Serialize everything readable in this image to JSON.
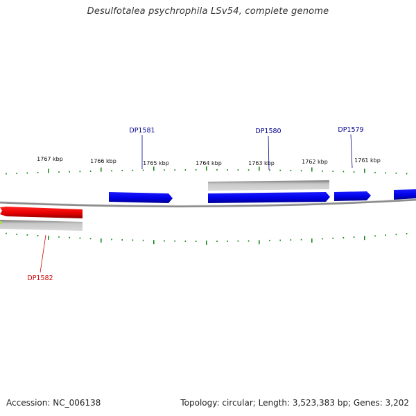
{
  "title": "Desulfotalea psychrophila LSv54, complete genome",
  "footer": {
    "accession": "Accession: NC_006138",
    "summary": "Topology: circular; Length: 3,523,383 bp; Genes: 3,202"
  },
  "colors": {
    "background": "#ffffff",
    "backbone": "#8c8c8c",
    "tick": "#1a8a1a",
    "forward_gene": "#0000e6",
    "reverse_gene": "#e60000",
    "gene_shadow_grey": "#bdbdbd",
    "forward_label": "#00008b",
    "reverse_label": "#cc0000"
  },
  "scale": {
    "unit": "kbp",
    "labels": [
      "1767 kbp",
      "1766 kbp",
      "1765 kbp",
      "1764 kbp",
      "1763 kbp",
      "1762 kbp",
      "1761 kbp"
    ]
  },
  "genes": [
    {
      "id": "DP1582",
      "label": "DP1582",
      "strand": "reverse",
      "color": "red"
    },
    {
      "id": "DP1581",
      "label": "DP1581",
      "strand": "forward",
      "color": "blue"
    },
    {
      "id": "DP1580",
      "label": "DP1580",
      "strand": "forward",
      "color": "blue"
    },
    {
      "id": "DP1579",
      "label": "DP1579",
      "strand": "forward",
      "color": "blue"
    },
    {
      "id": "next-gene",
      "label": "",
      "strand": "forward",
      "color": "blue"
    }
  ]
}
